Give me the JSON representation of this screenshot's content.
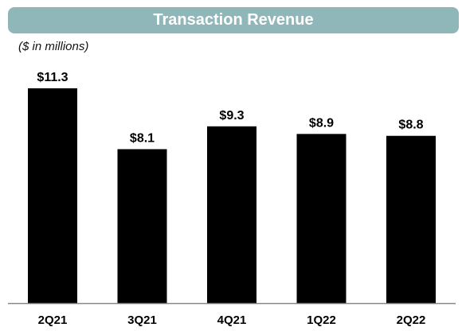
{
  "banner": {
    "title": "Transaction Revenue",
    "color": "#8fb7b9"
  },
  "units_label": "($ in millions)",
  "chart_data": {
    "type": "bar",
    "title": "Transaction Revenue",
    "subtitle": "($ in millions)",
    "categories": [
      "2Q21",
      "3Q21",
      "4Q21",
      "1Q22",
      "2Q22"
    ],
    "values": [
      11.3,
      8.1,
      9.3,
      8.9,
      8.8
    ],
    "value_labels": [
      "$11.3",
      "$8.1",
      "$9.3",
      "$8.9",
      "$8.8"
    ],
    "xlabel": "",
    "ylabel": "",
    "ylim": [
      0,
      11.3
    ],
    "grid": false,
    "legend": "none",
    "bar_color": "#000000",
    "axis_color": "#888888"
  }
}
